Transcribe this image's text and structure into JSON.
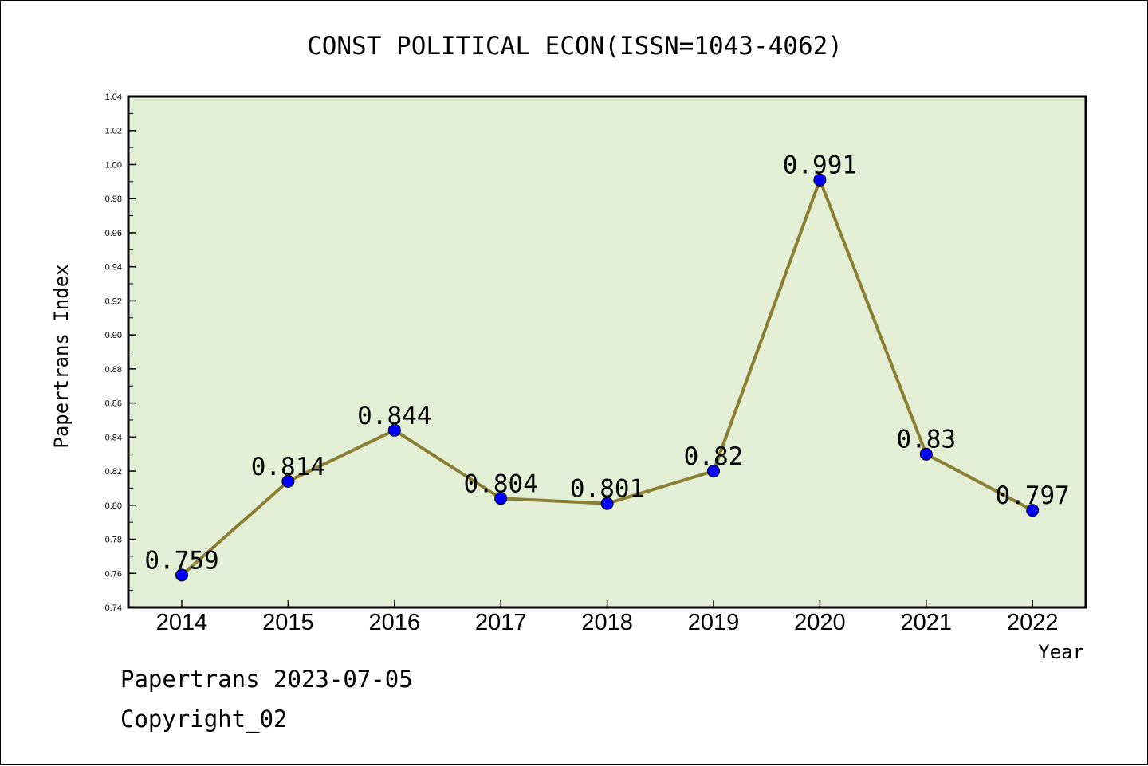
{
  "chart_data": {
    "type": "line",
    "title": "CONST POLITICAL ECON(ISSN=1043-4062)",
    "xlabel": "Year",
    "ylabel": "Papertrans Index",
    "categories": [
      "2014",
      "2015",
      "2016",
      "2017",
      "2018",
      "2019",
      "2020",
      "2021",
      "2022"
    ],
    "series": [
      {
        "values": [
          0.759,
          0.814,
          0.844,
          0.804,
          0.801,
          0.82,
          0.991,
          0.83,
          0.797
        ],
        "data_labels": [
          "0.759",
          "0.814",
          "0.844",
          "0.804",
          "0.801",
          "0.82",
          "0.991",
          "0.83",
          "0.797"
        ]
      }
    ],
    "ylim": [
      0.74,
      1.04
    ],
    "y_ticks": [
      "0.74",
      "0.76",
      "0.78",
      "0.80",
      "0.82",
      "0.84",
      "0.86",
      "0.88",
      "0.90",
      "0.92",
      "0.94",
      "0.96",
      "0.98",
      "1.00",
      "1.02",
      "1.04"
    ],
    "grid": false,
    "legend": "none",
    "colors": {
      "plot_background": "#e2efd5",
      "line": "#8c7d35",
      "marker": "#0000ff",
      "axis": "#000000"
    }
  },
  "footer": {
    "source": "Papertrans 2023-07-05",
    "copyright": "Copyright_02"
  }
}
